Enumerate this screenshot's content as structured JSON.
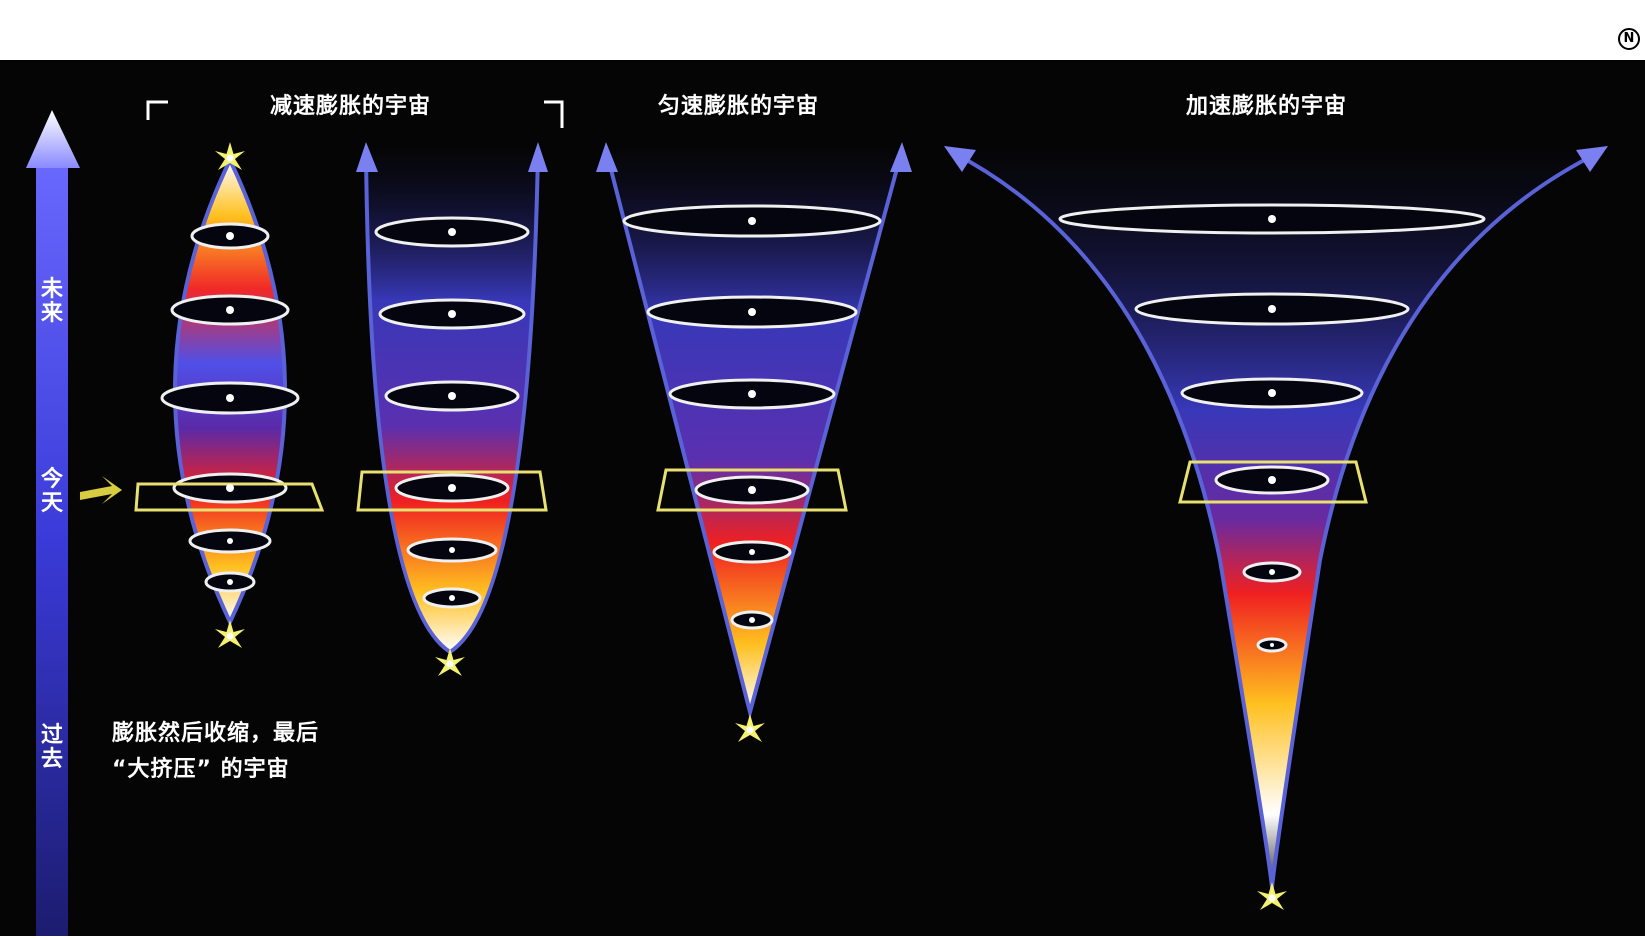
{
  "corner_mark": "N",
  "time_axis": {
    "future_label": "未来",
    "today_label": "今天",
    "past_label": "过去"
  },
  "models": {
    "decelerating_title": "减速膨胀的宇宙",
    "uniform_title": "匀速膨胀的宇宙",
    "accelerating_title": "加速膨胀的宇宙"
  },
  "big_crunch_note": {
    "line1": "膨胀然后收缩，最后",
    "line2": "“大挤压” 的宇宙"
  },
  "colors": {
    "background": "#050505",
    "axis": "#4a4ae0",
    "outline": "#5a62d8",
    "today_box": "#e8e070",
    "star": "#f4f070"
  }
}
